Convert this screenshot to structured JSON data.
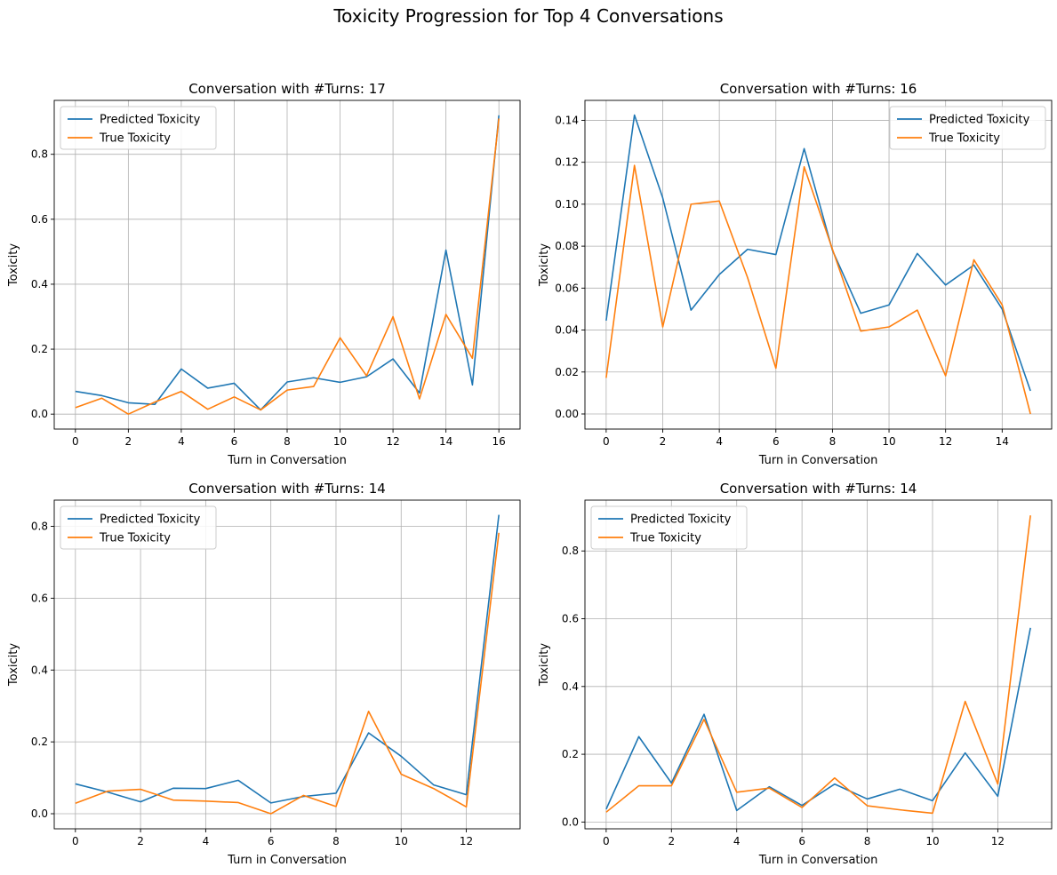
{
  "figure": {
    "title": "Toxicity Progression for Top 4 Conversations"
  },
  "colors": {
    "predicted": "#1f77b4",
    "true": "#ff7f0e",
    "grid": "#b0b0b0",
    "axis": "#000000",
    "legend_border": "#cccccc"
  },
  "chart_data": [
    {
      "type": "line",
      "title": "Conversation with #Turns: 17",
      "xlabel": "Turn in Conversation",
      "ylabel": "Toxicity",
      "xlim": [
        -0.8,
        16.8
      ],
      "ylim": [
        -0.046,
        0.966
      ],
      "xticks": [
        0,
        2,
        4,
        6,
        8,
        10,
        12,
        14,
        16
      ],
      "yticks": [
        0.0,
        0.2,
        0.4,
        0.6,
        0.8
      ],
      "ytick_labels": [
        "0.0",
        "0.2",
        "0.4",
        "0.6",
        "0.8"
      ],
      "grid": true,
      "legend": "top-left",
      "x": [
        0,
        1,
        2,
        3,
        4,
        5,
        6,
        7,
        8,
        9,
        10,
        11,
        12,
        13,
        14,
        15,
        16
      ],
      "series": [
        {
          "name": "Predicted Toxicity",
          "values": [
            0.07,
            0.057,
            0.035,
            0.03,
            0.139,
            0.08,
            0.095,
            0.013,
            0.099,
            0.112,
            0.098,
            0.115,
            0.17,
            0.065,
            0.505,
            0.09,
            0.92
          ]
        },
        {
          "name": "True Toxicity",
          "values": [
            0.02,
            0.049,
            0.0,
            0.037,
            0.07,
            0.015,
            0.053,
            0.013,
            0.074,
            0.085,
            0.235,
            0.118,
            0.3,
            0.047,
            0.307,
            0.172,
            0.91
          ]
        }
      ]
    },
    {
      "type": "line",
      "title": "Conversation with #Turns: 16",
      "xlabel": "Turn in Conversation",
      "ylabel": "Toxicity",
      "xlim": [
        -0.75,
        15.75
      ],
      "ylim": [
        -0.0072,
        0.1495
      ],
      "xticks": [
        0,
        2,
        4,
        6,
        8,
        10,
        12,
        14
      ],
      "yticks": [
        0.0,
        0.02,
        0.04,
        0.06,
        0.08,
        0.1,
        0.12,
        0.14
      ],
      "ytick_labels": [
        "0.00",
        "0.02",
        "0.04",
        "0.06",
        "0.08",
        "0.10",
        "0.12",
        "0.14"
      ],
      "grid": true,
      "legend": "top-right",
      "x": [
        0,
        1,
        2,
        3,
        4,
        5,
        6,
        7,
        8,
        9,
        10,
        11,
        12,
        13,
        14,
        15
      ],
      "series": [
        {
          "name": "Predicted Toxicity",
          "values": [
            0.0445,
            0.1425,
            0.103,
            0.0495,
            0.0665,
            0.0785,
            0.076,
            0.1265,
            0.078,
            0.048,
            0.052,
            0.0765,
            0.0615,
            0.071,
            0.05,
            0.011
          ]
        },
        {
          "name": "True Toxicity",
          "values": [
            0.0172,
            0.1185,
            0.0415,
            0.1,
            0.1015,
            0.065,
            0.0218,
            0.1178,
            0.0785,
            0.0395,
            0.0415,
            0.0495,
            0.0182,
            0.0735,
            0.052,
            0.0
          ]
        }
      ]
    },
    {
      "type": "line",
      "title": "Conversation with #Turns: 14",
      "xlabel": "Turn in Conversation",
      "ylabel": "Toxicity",
      "xlim": [
        -0.65,
        13.65
      ],
      "ylim": [
        -0.042,
        0.873
      ],
      "xticks": [
        0,
        2,
        4,
        6,
        8,
        10,
        12
      ],
      "yticks": [
        0.0,
        0.2,
        0.4,
        0.6,
        0.8
      ],
      "ytick_labels": [
        "0.0",
        "0.2",
        "0.4",
        "0.6",
        "0.8"
      ],
      "grid": true,
      "legend": "top-left",
      "x": [
        0,
        1,
        2,
        3,
        4,
        5,
        6,
        7,
        8,
        9,
        10,
        11,
        12,
        13
      ],
      "series": [
        {
          "name": "Predicted Toxicity",
          "values": [
            0.083,
            0.06,
            0.033,
            0.071,
            0.07,
            0.093,
            0.03,
            0.048,
            0.057,
            0.225,
            0.16,
            0.08,
            0.053,
            0.832
          ]
        },
        {
          "name": "True Toxicity",
          "values": [
            0.029,
            0.063,
            0.068,
            0.038,
            0.035,
            0.031,
            0.0,
            0.051,
            0.02,
            0.285,
            0.11,
            0.07,
            0.019,
            0.782
          ]
        }
      ]
    },
    {
      "type": "line",
      "title": "Conversation with #Turns: 14",
      "xlabel": "Turn in Conversation",
      "ylabel": "Toxicity",
      "xlim": [
        -0.65,
        13.65
      ],
      "ylim": [
        -0.02,
        0.95
      ],
      "xticks": [
        0,
        2,
        4,
        6,
        8,
        10,
        12
      ],
      "yticks": [
        0.0,
        0.2,
        0.4,
        0.6,
        0.8
      ],
      "ytick_labels": [
        "0.0",
        "0.2",
        "0.4",
        "0.6",
        "0.8"
      ],
      "grid": true,
      "legend": "top-left",
      "x": [
        0,
        1,
        2,
        3,
        4,
        5,
        6,
        7,
        8,
        9,
        10,
        11,
        12,
        13
      ],
      "series": [
        {
          "name": "Predicted Toxicity",
          "values": [
            0.038,
            0.252,
            0.115,
            0.318,
            0.034,
            0.104,
            0.049,
            0.112,
            0.068,
            0.097,
            0.063,
            0.204,
            0.076,
            0.573
          ]
        },
        {
          "name": "True Toxicity",
          "values": [
            0.029,
            0.107,
            0.107,
            0.303,
            0.088,
            0.1,
            0.043,
            0.13,
            0.048,
            0.036,
            0.026,
            0.356,
            0.112,
            0.905
          ]
        }
      ]
    }
  ]
}
